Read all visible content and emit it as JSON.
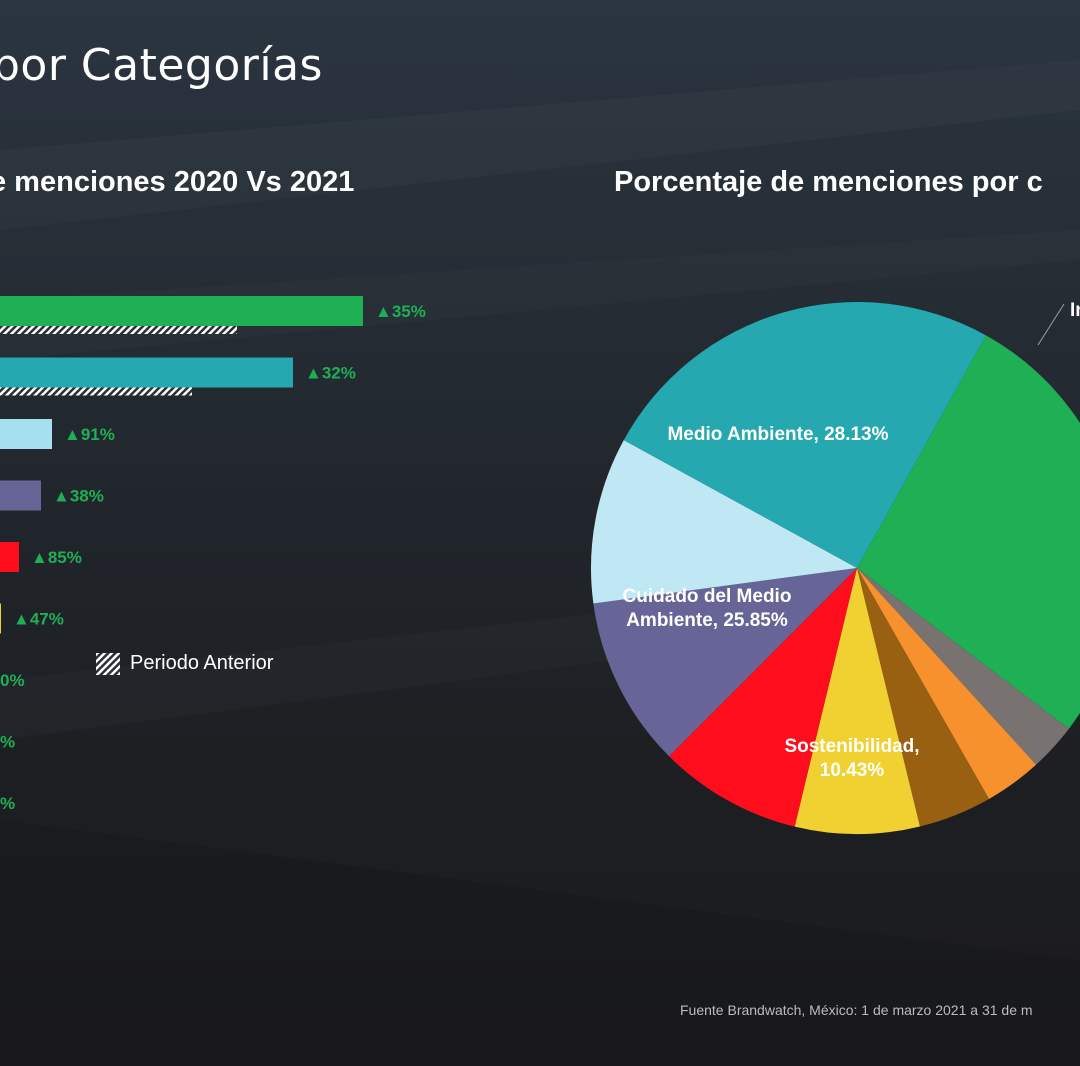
{
  "page_title": "por Categorías",
  "source_note": "Fuente Brandwatch, México: 1 de marzo 2021 a 31 de m",
  "legend": {
    "previous_period_label": "Periodo Anterior"
  },
  "chart_data": [
    {
      "type": "bar",
      "orientation": "horizontal",
      "title": "e menciones 2020 Vs 2021",
      "series": [
        {
          "name": "",
          "values": [
            363,
            293,
            52,
            41,
            19,
            1
          ],
          "colors": [
            "#1faf55",
            "#25a8b0",
            "#a6e0f0",
            "#676597",
            "#ff0d1d",
            "#f0d131"
          ]
        },
        {
          "name": "Periodo Anterior",
          "values": [
            237,
            192,
            null,
            null,
            null,
            null
          ],
          "pattern": "hatched"
        }
      ],
      "change_labels": [
        "▲35%",
        "▲32%",
        "▲91%",
        "▲38%",
        "▲85%",
        "▲47%",
        "0%",
        "%",
        "%"
      ],
      "change_color": "#1faf55"
    },
    {
      "type": "pie",
      "title": "Porcentaje de menciones por c",
      "slices": [
        {
          "label": "Medio Ambiente, 28.13%",
          "value": 28.13,
          "color": "#1faf55"
        },
        {
          "label": "",
          "value": 3.0,
          "color": "#787271"
        },
        {
          "label": "",
          "value": 3.6,
          "color": "#f7912d"
        },
        {
          "label": "",
          "value": 4.6,
          "color": "#9a6011"
        },
        {
          "label": "",
          "value": 7.8,
          "color": "#f0d131"
        },
        {
          "label": "",
          "value": 9.0,
          "color": "#ff0d1d"
        },
        {
          "label": "",
          "value": 10.7,
          "color": "#676597"
        },
        {
          "label": "Sostenibilidad, 10.43%",
          "value": 10.43,
          "color": "#bfe7f4"
        },
        {
          "label": "Cuidado del Medio Ambiente, 25.85%",
          "value": 25.85,
          "color": "#25a8b0"
        }
      ],
      "partial_label": "In"
    }
  ]
}
